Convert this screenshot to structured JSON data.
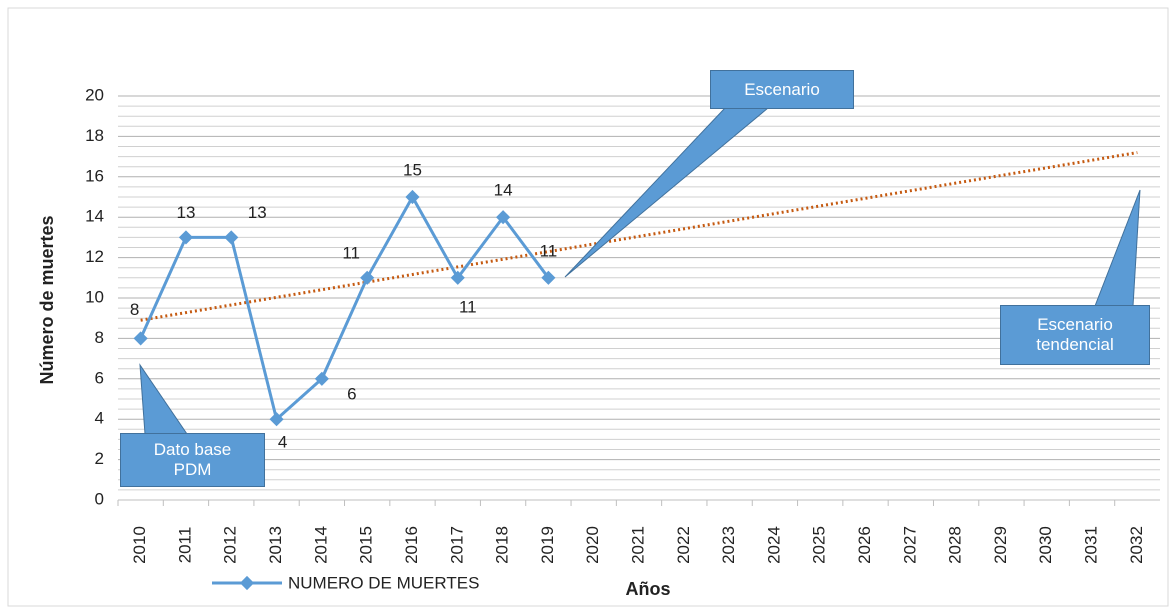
{
  "chart_data": {
    "type": "line",
    "x_label": "Años",
    "y_label": "Número de muertes",
    "categories": [
      "2010",
      "2011",
      "2012",
      "2013",
      "2014",
      "2015",
      "2016",
      "2017",
      "2018",
      "2019",
      "2020",
      "2021",
      "2022",
      "2023",
      "2024",
      "2025",
      "2026",
      "2027",
      "2028",
      "2029",
      "2030",
      "2031",
      "2032"
    ],
    "series": [
      {
        "name": "NUMERO DE MUERTES",
        "color": "#5b9bd5",
        "values": [
          8,
          13,
          13,
          4,
          6,
          11,
          15,
          11,
          14,
          11,
          null,
          null,
          null,
          null,
          null,
          null,
          null,
          null,
          null,
          null,
          null,
          null,
          null
        ]
      }
    ],
    "trendline": {
      "color": "#c55a11",
      "start": 8.9,
      "end": 17.2
    },
    "ylim": [
      0,
      20
    ],
    "yticks": [
      0,
      2,
      4,
      6,
      8,
      10,
      12,
      14,
      16,
      18,
      20
    ],
    "grid": true,
    "annotations": [
      "Escenario",
      "Escenario tendencial",
      "Dato base PDM"
    ]
  }
}
